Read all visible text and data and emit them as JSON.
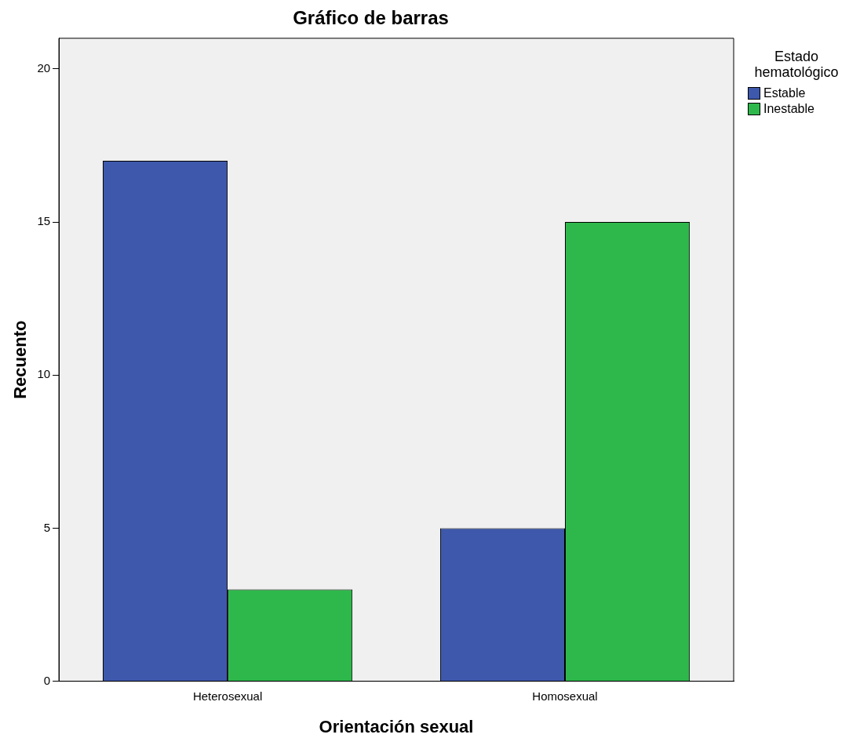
{
  "chart_data": {
    "type": "bar",
    "title": "Gráfico de barras",
    "xlabel": "Orientación sexual",
    "ylabel": "Recuento",
    "legend_title": "Estado hematológico",
    "categories": [
      "Heterosexual",
      "Homosexual"
    ],
    "series": [
      {
        "name": "Estable",
        "color": "#3e58ac",
        "values": [
          17,
          5
        ]
      },
      {
        "name": "Inestable",
        "color": "#2eb84b",
        "values": [
          3,
          15
        ]
      }
    ],
    "ylim": [
      0,
      21
    ],
    "yticks": [
      0,
      5,
      10,
      15,
      20
    ],
    "grid": false,
    "legend": "top right"
  }
}
